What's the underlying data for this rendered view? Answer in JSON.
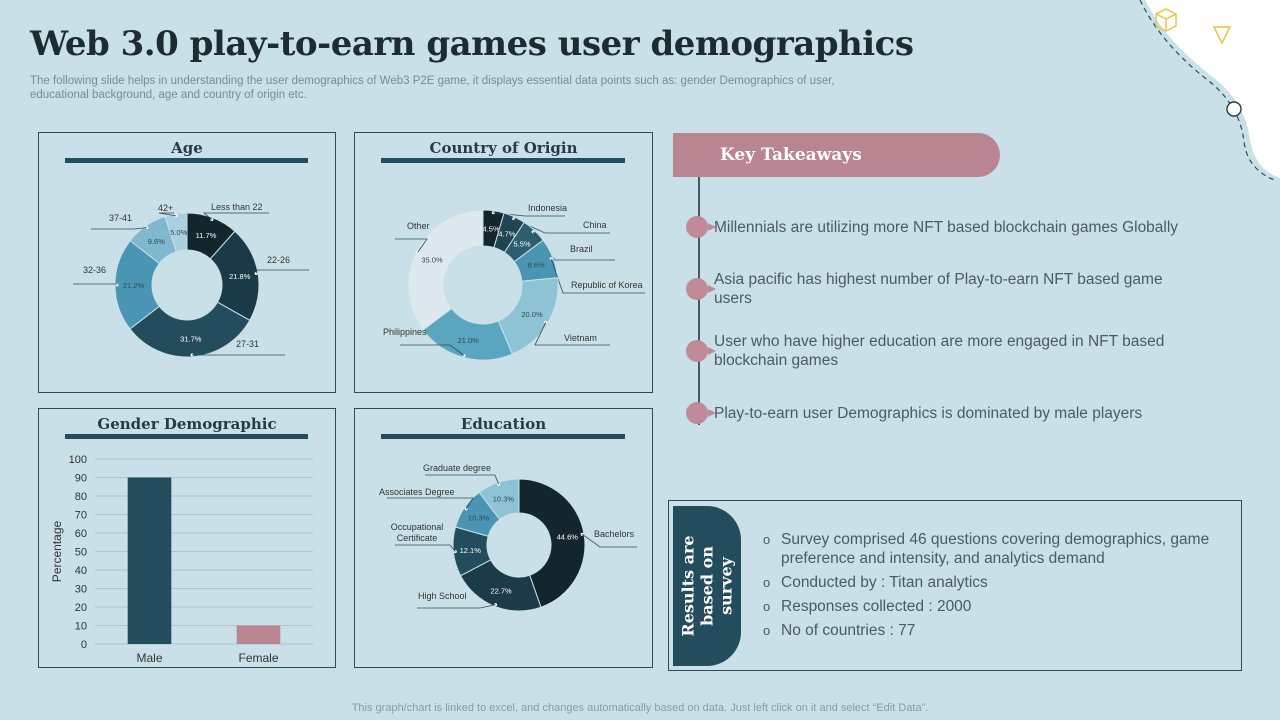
{
  "title": "Web 3.0 play-to-earn games user demographics",
  "subtitle": "The following slide helps in understanding the user demographics of Web3 P2E game, it displays essential data points such as: gender Demographics of user, educational background, age and country of origin etc.",
  "footer": "This graph/chart is linked to excel, and changes automatically based on data. Just left click on it and select “Edit Data”.",
  "takeaways": {
    "header": "Key Takeaways",
    "items": [
      "Millennials are utilizing more NFT based blockchain games Globally",
      "Asia pacific has highest number of Play-to-earn NFT based game users",
      "User who have higher education are more engaged in NFT based blockchain games",
      "Play-to-earn user Demographics is dominated by male players"
    ]
  },
  "survey": {
    "tab_label": "Results are based on survey",
    "items": [
      "Survey comprised 46 questions covering demographics, game preference and intensity, and analytics demand",
      "Conducted by : Titan analytics",
      "Responses collected : 2000",
      "No of countries : 77"
    ]
  },
  "colors": {
    "navy": "#234d5c",
    "rose": "#b98591",
    "background": "#c9e0e8"
  },
  "chart_data": [
    {
      "type": "pie",
      "title": "Age",
      "categories": [
        "Less than 22",
        "22-26",
        "27-31",
        "32-36",
        "37-41",
        "42+"
      ],
      "values": [
        11.7,
        21.8,
        31.7,
        21.2,
        9.6,
        5.0
      ],
      "value_labels": [
        "11.7%",
        "21.8%",
        "31.7%",
        "21.2%",
        "9.6%",
        "5.0%"
      ],
      "colors": [
        "#13252d",
        "#1b3a47",
        "#234d5c",
        "#4b95b4",
        "#7fb8cf",
        "#a9d0de"
      ]
    },
    {
      "type": "pie",
      "title": "Country of Origin",
      "categories": [
        "Indonesia",
        "China",
        "Brazil",
        "Republic of Korea",
        "Vietnam",
        "Philippines",
        "Other"
      ],
      "values": [
        4.5,
        4.7,
        5.5,
        8.6,
        20.0,
        21.0,
        35.0
      ],
      "value_labels": [
        "4.5%",
        "4.7%",
        "5.5%",
        "8.6%",
        "20.0%",
        "21.0%",
        "35.0%"
      ],
      "colors": [
        "#13252d",
        "#1f4452",
        "#2c5e70",
        "#4b95b4",
        "#8ec3d6",
        "#5aa5c0",
        "#dde9ee"
      ]
    },
    {
      "type": "bar",
      "title": "Gender Demographic",
      "categories": [
        "Male",
        "Female"
      ],
      "values": [
        90,
        10
      ],
      "ylabel": "Percentage",
      "ylim": [
        0,
        100
      ],
      "yticks": [
        0,
        10,
        20,
        30,
        40,
        50,
        60,
        70,
        80,
        90,
        100
      ],
      "grid": true,
      "colors": [
        "#234d5c",
        "#b98591"
      ]
    },
    {
      "type": "pie",
      "title": "Education",
      "categories": [
        "Bachelors",
        "High School",
        "Occupational Certificate",
        "Associates Degree",
        "Graduate degree"
      ],
      "values": [
        44.6,
        22.7,
        12.1,
        10.3,
        10.3
      ],
      "value_labels": [
        "44.6%",
        "22.7%",
        "12.1%",
        "10.3%",
        "10.3%"
      ],
      "colors": [
        "#13252d",
        "#1c3b48",
        "#234d5c",
        "#4b95b4",
        "#8ec3d6"
      ]
    }
  ]
}
